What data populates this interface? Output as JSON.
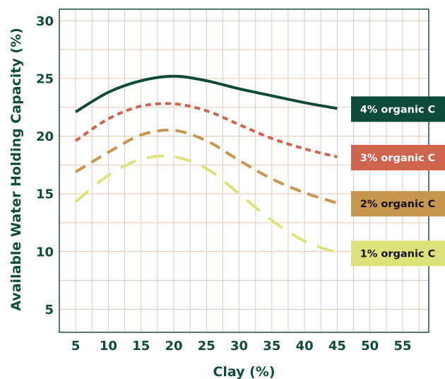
{
  "chart_data": {
    "type": "line",
    "xlabel": "Clay (%)",
    "ylabel": "Available Water Holding Capacity (%)",
    "xlim": [
      2.5,
      59
    ],
    "ylim": [
      3,
      31
    ],
    "xticks": [
      5,
      10,
      15,
      20,
      25,
      30,
      35,
      40,
      45,
      50,
      55
    ],
    "yticks": [
      5,
      10,
      15,
      20,
      25,
      30
    ],
    "grid": true,
    "legend": "direct labels at right end of each line",
    "series": [
      {
        "name": "4% organic C",
        "color": "#0d4a3a",
        "label_text_color": "#ffffff",
        "style": "solid",
        "x": [
          5,
          10,
          15,
          20,
          25,
          30,
          35,
          40,
          45
        ],
        "y": [
          22.1,
          23.8,
          24.8,
          25.2,
          24.8,
          24.1,
          23.5,
          22.9,
          22.4
        ]
      },
      {
        "name": "3% organic C",
        "color": "#d0634e",
        "label_text_color": "#ffffff",
        "style": "dotted",
        "x": [
          5,
          10,
          15,
          20,
          25,
          30,
          35,
          40,
          45
        ],
        "y": [
          19.6,
          21.5,
          22.6,
          22.8,
          22.2,
          21.0,
          19.8,
          18.9,
          18.2
        ]
      },
      {
        "name": "2% organic C",
        "color": "#c8974f",
        "label_text_color": "#111111",
        "style": "dashed",
        "x": [
          5,
          10,
          15,
          20,
          25,
          30,
          35,
          40,
          45
        ],
        "y": [
          16.9,
          18.6,
          20.1,
          20.5,
          19.6,
          17.9,
          16.3,
          15.1,
          14.2
        ]
      },
      {
        "name": "1% organic C",
        "color": "#dde37a",
        "label_text_color": "#111111",
        "style": "long-dashed",
        "x": [
          5,
          10,
          15,
          20,
          25,
          30,
          35,
          40,
          45
        ],
        "y": [
          14.3,
          16.6,
          18.0,
          18.2,
          17.2,
          15.0,
          12.7,
          10.9,
          9.9
        ]
      }
    ],
    "colors": {
      "frame": "#1b4e3f",
      "grid": "#e7c9b6",
      "axis_text": "#0f4c3a"
    }
  }
}
